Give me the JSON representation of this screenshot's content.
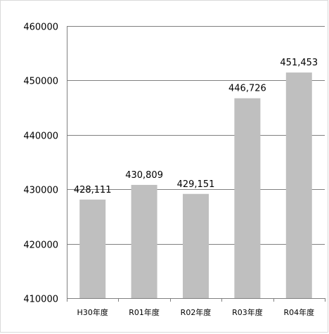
{
  "chart_data": {
    "type": "bar",
    "title": "",
    "xlabel": "",
    "ylabel": "",
    "categories": [
      "H30年度",
      "R01年度",
      "R02年度",
      "R03年度",
      "R04年度"
    ],
    "values": [
      428111,
      430809,
      429151,
      446726,
      451453
    ],
    "value_labels": [
      "428,111",
      "430,809",
      "429,151",
      "446,726",
      "451,453"
    ],
    "ylim": [
      410000,
      460000
    ],
    "yticks": [
      410000,
      420000,
      430000,
      440000,
      450000,
      460000
    ],
    "ytick_labels": [
      "410000",
      "420000",
      "430000",
      "440000",
      "450000",
      "460000"
    ],
    "grid": "horizontal",
    "legend": "none",
    "bar_color": "#bfbfbf",
    "grid_color": "#808080"
  }
}
